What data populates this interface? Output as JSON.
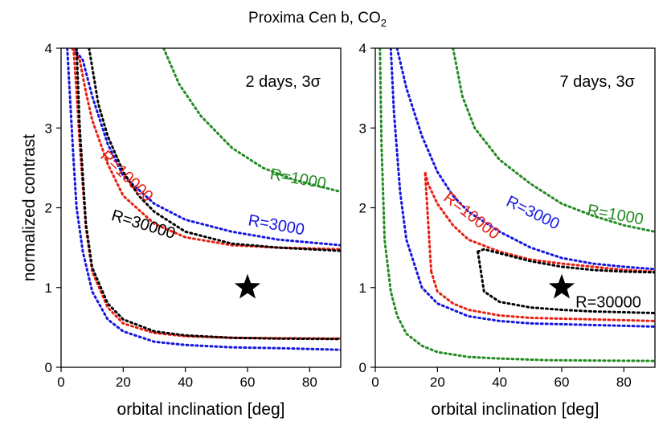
{
  "figure": {
    "title": "Proxima Cen b, CO",
    "title_subscript": "2"
  },
  "chart_data": [
    {
      "type": "line",
      "panel": "left",
      "annotation": "2 days, 3σ",
      "xlabel": "orbital inclination [deg]",
      "ylabel": "normalized contrast",
      "xlim": [
        0,
        90
      ],
      "ylim": [
        0,
        4
      ],
      "xticks": [
        "0",
        "20",
        "40",
        "60",
        "80"
      ],
      "yticks": [
        "0",
        "1",
        "2",
        "3",
        "4"
      ],
      "marker": {
        "x": 60,
        "y": 1.0,
        "symbol": "star"
      },
      "series": [
        {
          "name": "R=1000",
          "color": "#228B22",
          "upper": {
            "x": [
              33,
              38,
              45,
              55,
              65,
              75,
              90
            ],
            "y": [
              4.0,
              3.55,
              3.15,
              2.75,
              2.5,
              2.35,
              2.2
            ]
          }
        },
        {
          "name": "R=3000",
          "color": "#1515e0",
          "upper": {
            "x": [
              4,
              7,
              10,
              15,
              20,
              30,
              40,
              55,
              70,
              90
            ],
            "y": [
              4.0,
              3.85,
              3.4,
              2.8,
              2.4,
              2.05,
              1.85,
              1.7,
              1.6,
              1.53
            ]
          },
          "lower": {
            "x": [
              2,
              3,
              4,
              5,
              7,
              10,
              15,
              20,
              30,
              40,
              55,
              70,
              90
            ],
            "y": [
              4.0,
              3.3,
              2.6,
              2.0,
              1.45,
              0.95,
              0.6,
              0.45,
              0.32,
              0.28,
              0.25,
              0.24,
              0.22
            ]
          }
        },
        {
          "name": "R=10000",
          "color": "#e81e10",
          "upper": {
            "x": [
              3.5,
              6,
              8,
              10,
              15,
              20,
              30,
              40,
              55,
              70,
              90
            ],
            "y": [
              4.0,
              3.85,
              3.45,
              3.1,
              2.55,
              2.15,
              1.8,
              1.63,
              1.53,
              1.5,
              1.48
            ]
          },
          "lower": {
            "x": [
              4,
              5,
              6,
              8,
              10,
              15,
              20,
              30,
              40,
              55,
              70,
              90
            ],
            "y": [
              4.0,
              3.45,
              2.8,
              1.75,
              1.2,
              0.75,
              0.55,
              0.43,
              0.39,
              0.37,
              0.365,
              0.36
            ]
          }
        },
        {
          "name": "R=30000",
          "color": "#000000",
          "upper": {
            "x": [
              9,
              12,
              15,
              20,
              25,
              30,
              40,
              55,
              70,
              90
            ],
            "y": [
              4.0,
              3.3,
              2.9,
              2.45,
              2.15,
              1.95,
              1.7,
              1.55,
              1.5,
              1.46
            ]
          },
          "lower": {
            "x": [
              5,
              6,
              8,
              10,
              15,
              20,
              30,
              40,
              55,
              70,
              90
            ],
            "y": [
              4.0,
              3.0,
              1.8,
              1.25,
              0.8,
              0.6,
              0.45,
              0.4,
              0.37,
              0.36,
              0.355
            ]
          }
        }
      ],
      "labels": [
        {
          "text": "R=1000",
          "series": "R=1000"
        },
        {
          "text": "R=3000",
          "series": "R=3000"
        },
        {
          "text": "R=10000",
          "series": "R=10000"
        },
        {
          "text": "R=30000",
          "series": "R=30000"
        }
      ]
    },
    {
      "type": "line",
      "panel": "right",
      "annotation": "7 days, 3σ",
      "xlabel": "orbital inclination [deg]",
      "ylabel": "",
      "xlim": [
        0,
        90
      ],
      "ylim": [
        0,
        4
      ],
      "xticks": [
        "0",
        "20",
        "40",
        "60",
        "80"
      ],
      "yticks": [
        "0",
        "1",
        "2",
        "3",
        "4"
      ],
      "marker": {
        "x": 60,
        "y": 1.0,
        "symbol": "star"
      },
      "series": [
        {
          "name": "R=1000",
          "color": "#228B22",
          "upper": {
            "x": [
              25,
              28,
              32,
              40,
              50,
              60,
              70,
              80,
              90
            ],
            "y": [
              4.0,
              3.4,
              3.0,
              2.6,
              2.3,
              2.05,
              1.9,
              1.78,
              1.7
            ]
          },
          "lower": {
            "x": [
              1.5,
              2,
              3,
              5,
              7,
              10,
              15,
              20,
              30,
              40,
              55,
              70,
              90
            ],
            "y": [
              4.0,
              2.8,
              1.6,
              0.95,
              0.65,
              0.42,
              0.27,
              0.19,
              0.13,
              0.11,
              0.09,
              0.085,
              0.08
            ]
          }
        },
        {
          "name": "R=3000",
          "color": "#1515e0",
          "upper": {
            "x": [
              7,
              10,
              15,
              20,
              25,
              30,
              40,
              50,
              60,
              70,
              80,
              90
            ],
            "y": [
              4.0,
              3.5,
              2.9,
              2.45,
              2.15,
              1.95,
              1.7,
              1.5,
              1.37,
              1.3,
              1.26,
              1.23
            ]
          },
          "lower": {
            "x": [
              5,
              6,
              8,
              10,
              15,
              20,
              30,
              40,
              50,
              60,
              70,
              80,
              90
            ],
            "y": [
              4.0,
              3.2,
              2.2,
              1.6,
              1.0,
              0.8,
              0.64,
              0.58,
              0.55,
              0.54,
              0.53,
              0.52,
              0.51
            ]
          }
        },
        {
          "name": "R=10000",
          "color": "#e81e10",
          "upper": {
            "x": [
              18,
              16,
              17,
              20,
              25,
              30,
              40,
              50,
              60,
              70,
              80,
              90
            ],
            "y": [
              1.2,
              2.45,
              2.3,
              2.05,
              1.78,
              1.6,
              1.45,
              1.35,
              1.3,
              1.26,
              1.22,
              1.2
            ]
          },
          "lower": {
            "x": [
              18,
              20,
              25,
              30,
              40,
              50,
              60,
              70,
              80,
              90
            ],
            "y": [
              1.2,
              0.95,
              0.8,
              0.72,
              0.65,
              0.62,
              0.61,
              0.6,
              0.59,
              0.58
            ]
          }
        },
        {
          "name": "R=30000",
          "color": "#000000",
          "upper": {
            "x": [
              33,
              35,
              40,
              50,
              60,
              70,
              80,
              90
            ],
            "y": [
              1.45,
              1.48,
              1.43,
              1.33,
              1.26,
              1.22,
              1.2,
              1.19
            ]
          },
          "lower": {
            "x": [
              33,
              35,
              40,
              50,
              60,
              70,
              80,
              90
            ],
            "y": [
              1.45,
              0.95,
              0.82,
              0.75,
              0.72,
              0.7,
              0.69,
              0.68
            ]
          }
        }
      ],
      "labels": [
        {
          "text": "R=1000",
          "series": "R=1000"
        },
        {
          "text": "R=3000",
          "series": "R=3000"
        },
        {
          "text": "R=10000",
          "series": "R=10000"
        },
        {
          "text": "R=30000",
          "series": "R=30000"
        }
      ]
    }
  ]
}
